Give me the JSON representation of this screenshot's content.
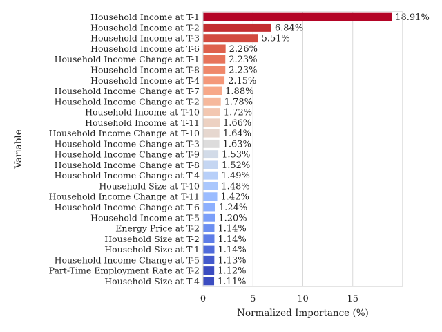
{
  "chart_data": {
    "type": "bar",
    "orientation": "horizontal",
    "xlabel": "Normalized Importance (%)",
    "ylabel": "Variable",
    "xlim": [
      0,
      20
    ],
    "xticks": [
      "0",
      "5",
      "10",
      "15"
    ],
    "grid": true,
    "categories": [
      "Household Income at T-1",
      "Household Income at T-2",
      "Household Income at T-3",
      "Household Income at T-6",
      "Household Income Change at T-1",
      "Household Income at T-8",
      "Household Income at T-4",
      "Household Income Change at T-7",
      "Household Income Change at T-2",
      "Household Income at T-10",
      "Household Income at T-11",
      "Household Income Change at T-10",
      "Household Income Change at T-3",
      "Household Income Change at T-9",
      "Household Income Change at T-8",
      "Household Income Change at T-4",
      "Household Size at T-10",
      "Household Income Change at T-11",
      "Household Income Change at T-6",
      "Household Income at T-5",
      "Energy Price at T-2",
      "Household Size at T-2",
      "Household Size at T-1",
      "Household Income Change at T-5",
      "Part-Time Employment Rate at T-2",
      "Household Size at T-4"
    ],
    "values": [
      18.91,
      6.84,
      5.51,
      2.26,
      2.23,
      2.23,
      2.15,
      1.88,
      1.78,
      1.72,
      1.66,
      1.64,
      1.63,
      1.53,
      1.52,
      1.49,
      1.48,
      1.42,
      1.24,
      1.2,
      1.14,
      1.14,
      1.14,
      1.13,
      1.12,
      1.11
    ],
    "value_labels": [
      "18.91%",
      "6.84%",
      "5.51%",
      "2.26%",
      "2.23%",
      "2.23%",
      "2.15%",
      "1.88%",
      "1.78%",
      "1.72%",
      "1.66%",
      "1.64%",
      "1.63%",
      "1.53%",
      "1.52%",
      "1.49%",
      "1.48%",
      "1.42%",
      "1.24%",
      "1.20%",
      "1.14%",
      "1.14%",
      "1.14%",
      "1.13%",
      "1.12%",
      "1.11%"
    ],
    "colors": [
      "#b40426",
      "#c32e31",
      "#d24b40",
      "#de614d",
      "#e7745b",
      "#ef886b",
      "#f4987a",
      "#f7a889",
      "#f6b89c",
      "#f3c7b1",
      "#edd1c2",
      "#e6d7cf",
      "#dddcdc",
      "#d2dbe8",
      "#c5d6f2",
      "#b7cff9",
      "#aac7fd",
      "#9bbcff",
      "#8db0fe",
      "#7b9ff9",
      "#6c8ff1",
      "#5e7de7",
      "#506bda",
      "#445acc",
      "#3b4cc0",
      "#3b4cc0"
    ],
    "palette": "coolwarm"
  }
}
